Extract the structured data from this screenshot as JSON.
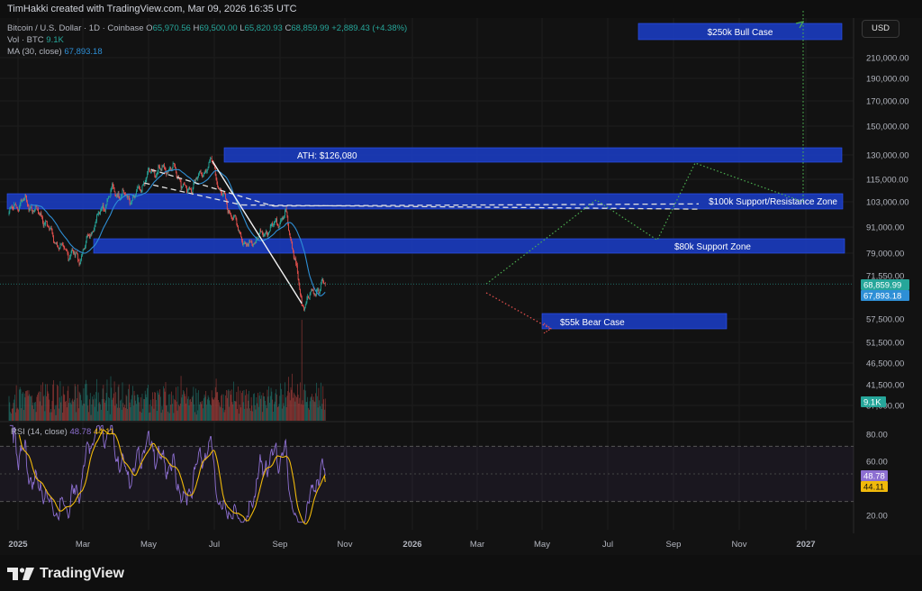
{
  "credit": "TimHakki created with TradingView.com, Mar 09, 2026 16:35 UTC",
  "brand": "TradingView",
  "currency_button": "USD",
  "legend": {
    "symbol": "Bitcoin / U.S. Dollar · 1D · Coinbase",
    "o_label": "O",
    "o": "65,970.56",
    "h_label": "H",
    "h": "69,500.00",
    "l_label": "L",
    "l": "65,820.93",
    "c_label": "C",
    "c": "68,859.99",
    "change": "+2,889.43 (+4.38%)",
    "vol_label": "Vol · BTC",
    "vol": "9.1K",
    "ma_label": "MA (30, close)",
    "ma": "67,893.18"
  },
  "rsi_legend": {
    "label": "RSI (14, close)",
    "rsi": "48.78",
    "ma": "44.11"
  },
  "colors": {
    "up": "#26a69a",
    "down": "#ef5350",
    "ma": "#2e8fd6",
    "zone": "#1a3cc4",
    "rsi": "#8d6fd1",
    "rsi_ma": "#f0b90b",
    "bg": "#121212"
  },
  "chart_data": {
    "type": "candlestick",
    "price_axis": {
      "ticks": [
        "210,000.00",
        "190,000.00",
        "170,000.00",
        "150,000.00",
        "130,000.00",
        "115,000.00",
        "103,000.00",
        "91,000.00",
        "79,000.00",
        "71,550.00",
        "57,500.00",
        "51,500.00",
        "46,500.00",
        "41,500.00",
        "37,000.00"
      ],
      "badges": [
        {
          "label": "68,859.99",
          "color": "#26a69a"
        },
        {
          "label": "67,893.18",
          "color": "#2e8fd6"
        },
        {
          "label": "9.1K",
          "color": "#26a69a"
        }
      ]
    },
    "rsi_axis": {
      "ticks": [
        "80.00",
        "60.00",
        "40.00",
        "20.00"
      ],
      "badges": [
        {
          "label": "48.78",
          "color": "#8d6fd1"
        },
        {
          "label": "44.11",
          "color": "#f0b90b"
        }
      ],
      "band_upper": 70,
      "band_lower": 30
    },
    "time_axis": [
      "2025",
      "Mar",
      "May",
      "Jul",
      "Sep",
      "Nov",
      "2026",
      "Mar",
      "May",
      "Jul",
      "Sep",
      "Nov",
      "2027"
    ],
    "zones": [
      {
        "label": "$250k Bull Case"
      },
      {
        "label": "ATH: $126,080"
      },
      {
        "label": "$100k Support/Resistance Zone"
      },
      {
        "label": "$80k Support Zone"
      },
      {
        "label": "$55k Bear Case"
      }
    ],
    "price_path": [
      {
        "x": "2025-01-01",
        "y": 98000
      },
      {
        "x": "2025-01-20",
        "y": 104000
      },
      {
        "x": "2025-02-15",
        "y": 96000
      },
      {
        "x": "2025-03-10",
        "y": 82000
      },
      {
        "x": "2025-04-08",
        "y": 77000
      },
      {
        "x": "2025-05-01",
        "y": 95000
      },
      {
        "x": "2025-05-22",
        "y": 109000
      },
      {
        "x": "2025-06-20",
        "y": 104000
      },
      {
        "x": "2025-07-14",
        "y": 120000
      },
      {
        "x": "2025-08-14",
        "y": 122000
      },
      {
        "x": "2025-09-01",
        "y": 108000
      },
      {
        "x": "2025-10-06",
        "y": 126080
      },
      {
        "x": "2025-10-15",
        "y": 110000
      },
      {
        "x": "2025-11-21",
        "y": 82000
      },
      {
        "x": "2025-12-15",
        "y": 88000
      },
      {
        "x": "2026-01-14",
        "y": 97000
      },
      {
        "x": "2026-02-05",
        "y": 62000
      },
      {
        "x": "2026-02-20",
        "y": 66000
      },
      {
        "x": "2026-03-09",
        "y": 68859.99
      }
    ],
    "projections": {
      "bull_path": [
        68860,
        90000,
        104000,
        85000,
        125000,
        103000,
        250000
      ],
      "bear_target": 55000
    }
  }
}
